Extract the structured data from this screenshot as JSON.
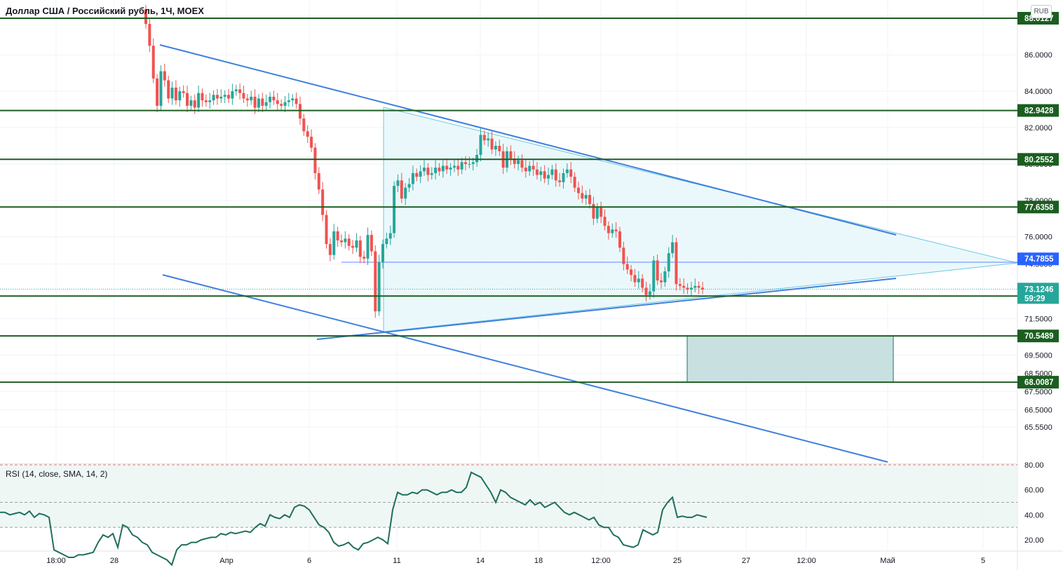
{
  "header": {
    "title": "Доллар США / Российский рубль, 1Ч, MOEX",
    "currency_button": "RUB"
  },
  "rsi": {
    "title": "RSI (14, close, SMA, 14, 2)",
    "upper": 80,
    "mid_upper": 50,
    "lower": 30,
    "ticks": [
      "80.00",
      "60.00",
      "40.00",
      "20.00"
    ],
    "tick_values": [
      80,
      60,
      40,
      20
    ],
    "color": "#1e6f5c",
    "values": [
      42,
      42,
      40,
      41,
      42,
      40,
      43,
      38,
      41,
      40,
      38,
      12,
      10,
      8,
      6,
      6,
      8,
      8,
      9,
      10,
      18,
      24,
      22,
      25,
      14,
      32,
      30,
      24,
      22,
      18,
      16,
      10,
      8,
      6,
      4,
      0,
      12,
      16,
      16,
      18,
      18,
      20,
      21,
      22,
      22,
      25,
      24,
      26,
      25,
      26,
      27,
      26,
      30,
      33,
      31,
      40,
      38,
      37,
      40,
      38,
      46,
      48,
      47,
      44,
      38,
      32,
      30,
      26,
      18,
      15,
      16,
      18,
      14,
      12,
      17,
      18,
      20,
      22,
      20,
      17,
      44,
      58,
      56,
      56,
      58,
      57,
      60,
      60,
      58,
      56,
      58,
      58,
      60,
      58,
      58,
      62,
      74,
      72,
      70,
      64,
      58,
      50,
      60,
      58,
      54,
      52,
      50,
      48,
      52,
      48,
      50,
      46,
      48,
      50,
      46,
      42,
      40,
      42,
      40,
      38,
      36,
      38,
      32,
      30,
      30,
      24,
      22,
      16,
      15,
      14,
      16,
      28,
      26,
      24,
      26,
      44,
      50,
      54,
      38,
      39,
      38,
      38,
      40,
      39,
      38
    ]
  },
  "chart_data": {
    "type": "candlestick",
    "title": "Доллар США / Российский рубль, 1Ч, MOEX",
    "currency": "RUB",
    "y_axis": {
      "ticks": [
        "86.0000",
        "84.0000",
        "82.0000",
        "80.0000",
        "78.0000",
        "76.0000",
        "74.5000",
        "71.5000",
        "69.5000",
        "68.5000",
        "67.5000",
        "66.5000",
        "65.5500"
      ],
      "tick_values": [
        86,
        84,
        82,
        80,
        78,
        76,
        74.5,
        71.5,
        69.5,
        68.5,
        67.5,
        66.5,
        65.55
      ],
      "range": [
        65.4,
        88.9
      ]
    },
    "x_axis": {
      "ticks": [
        "18:00",
        "28",
        "Апр",
        "6",
        "11",
        "14",
        "18",
        "12:00",
        "25",
        "27",
        "12:00",
        "Май",
        "5"
      ]
    },
    "levels": [
      {
        "label": "88.0127",
        "value": 88.0127
      },
      {
        "label": "82.9428",
        "value": 82.9428
      },
      {
        "label": "80.2552",
        "value": 80.2552
      },
      {
        "label": "77.6358",
        "value": 77.6358
      },
      {
        "label": "72.7433",
        "value": 72.7433
      },
      {
        "label": "70.5489",
        "value": 70.5489
      },
      {
        "label": "68.0087",
        "value": 68.0087
      }
    ],
    "blue_tag": {
      "label": "74.7855",
      "value": 74.7855,
      "color": "#2962ff"
    },
    "last_price": {
      "label": "73.1246",
      "countdown": "59:29",
      "value": 73.1246
    },
    "level_color": "#1b5e20",
    "up_color": "#26a69a",
    "down_color": "#ef5350",
    "target_zone": {
      "from": 68.0087,
      "to": 70.5489
    },
    "candles_close": [
      87.7,
      86.5,
      84.7,
      83.2,
      85.1,
      84.6,
      83.6,
      84.2,
      83.5,
      84.0,
      83.9,
      83.2,
      83.5,
      83.1,
      83.9,
      83.5,
      83.4,
      83.5,
      83.8,
      83.6,
      83.7,
      83.8,
      83.6,
      84.0,
      84.1,
      83.9,
      83.6,
      83.5,
      83.7,
      83.1,
      83.6,
      83.2,
      83.4,
      83.7,
      83.5,
      83.3,
      83.2,
      83.4,
      83.5,
      83.6,
      83.3,
      82.5,
      81.8,
      81.5,
      80.9,
      79.5,
      78.6,
      77.2,
      75.6,
      75.0,
      76.3,
      75.8,
      75.7,
      75.9,
      75.5,
      75.4,
      75.8,
      74.9,
      74.8,
      76.1,
      75.2,
      71.9,
      74.6,
      75.6,
      75.9,
      76.2,
      78.8,
      79.1,
      78.1,
      78.7,
      78.9,
      79.5,
      79.3,
      79.6,
      79.8,
      79.4,
      79.5,
      79.8,
      79.6,
      79.9,
      79.7,
      79.8,
      79.9,
      79.7,
      80.1,
      80.0,
      80.0,
      80.1,
      80.5,
      81.6,
      81.3,
      81.4,
      80.8,
      81.0,
      80.7,
      79.8,
      80.7,
      80.3,
      80.0,
      80.2,
      79.8,
      79.6,
      79.9,
      79.7,
      79.4,
      79.6,
      79.2,
      79.4,
      79.7,
      79.1,
      79.0,
      79.5,
      79.7,
      79.3,
      78.7,
      78.4,
      78.1,
      78.3,
      77.8,
      77.0,
      77.6,
      77.1,
      76.6,
      76.2,
      76.4,
      76.3,
      75.4,
      74.5,
      74.2,
      73.9,
      73.5,
      73.7,
      73.2,
      72.8,
      73.0,
      74.7,
      73.6,
      73.5,
      74.1,
      75.1,
      75.7,
      73.4,
      73.3,
      73.2,
      73.1,
      73.2,
      73.3,
      73.2,
      73.1
    ]
  }
}
